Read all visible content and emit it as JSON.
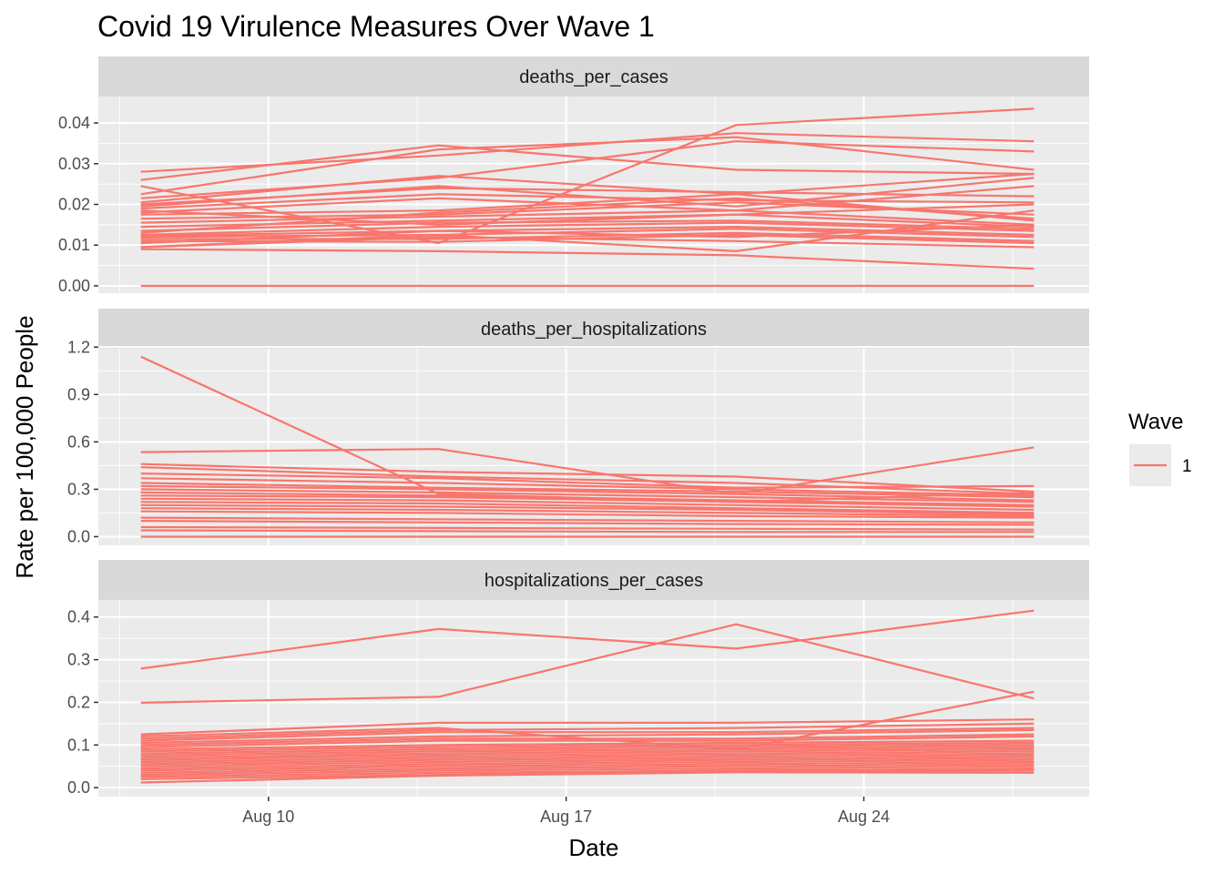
{
  "chart_data": {
    "type": "line",
    "title": "Covid 19 Virulence Measures Over Wave 1",
    "xlabel": "Date",
    "ylabel": "Rate per 100,000 People",
    "x_dates": [
      "Aug 7",
      "Aug 14",
      "Aug 21",
      "Aug 28"
    ],
    "x_day_values": [
      7,
      14,
      21,
      28
    ],
    "x_ticks": [
      {
        "label": "Aug 10",
        "day": 10
      },
      {
        "label": "Aug 17",
        "day": 17
      },
      {
        "label": "Aug 24",
        "day": 24
      }
    ],
    "x_range": [
      6.0,
      29.3
    ],
    "legend": {
      "title": "Wave",
      "entries": [
        {
          "label": "1",
          "color": "#F8766D"
        }
      ]
    },
    "line_color": "#F8766D",
    "panel_bg": "#EBEBEB",
    "strip_bg": "#D9D9D9",
    "grid_color": "#FFFFFF",
    "panels": [
      {
        "name": "deaths_per_cases",
        "ylim": [
          -0.0018,
          0.0465
        ],
        "yticks": [
          0.0,
          0.01,
          0.02,
          0.03,
          0.04
        ],
        "ytick_labels": [
          "0.00",
          "0.01",
          "0.02",
          "0.03",
          "0.04"
        ],
        "series": [
          [
            0.028,
            0.032,
            0.0375,
            0.0355
          ],
          [
            0.026,
            0.0345,
            0.0285,
            0.0275
          ],
          [
            0.0225,
            0.0335,
            0.0365,
            0.0285
          ],
          [
            0.0245,
            0.0105,
            0.0395,
            0.0435
          ],
          [
            0.0215,
            0.0265,
            0.0355,
            0.033
          ],
          [
            0.0205,
            0.027,
            0.0225,
            0.0275
          ],
          [
            0.02,
            0.024,
            0.023,
            0.022
          ],
          [
            0.019,
            0.0225,
            0.021,
            0.0205
          ],
          [
            0.018,
            0.0215,
            0.0185,
            0.0245
          ],
          [
            0.0175,
            0.0185,
            0.0225,
            0.016
          ],
          [
            0.0165,
            0.0175,
            0.0205,
            0.0175
          ],
          [
            0.0155,
            0.017,
            0.0185,
            0.015
          ],
          [
            0.0145,
            0.016,
            0.0175,
            0.0145
          ],
          [
            0.0135,
            0.0155,
            0.016,
            0.014
          ],
          [
            0.0125,
            0.0145,
            0.0155,
            0.0135
          ],
          [
            0.0122,
            0.0135,
            0.0145,
            0.0125
          ],
          [
            0.012,
            0.0125,
            0.014,
            0.012
          ],
          [
            0.0115,
            0.0115,
            0.013,
            0.011
          ],
          [
            0.011,
            0.0108,
            0.0125,
            0.0105
          ],
          [
            0.0105,
            0.0135,
            0.012,
            0.015
          ],
          [
            0.0095,
            0.012,
            0.011,
            0.0095
          ],
          [
            0.009,
            0.0085,
            0.0075,
            0.0042
          ],
          [
            0.0095,
            0.0125,
            0.0085,
            0.0185
          ],
          [
            0.0185,
            0.015,
            0.0175,
            0.02
          ],
          [
            0.0195,
            0.0245,
            0.0195,
            0.0265
          ],
          [
            0.013,
            0.018,
            0.0215,
            0.0165
          ],
          [
            0.0,
            0.0,
            0.0,
            0.0
          ]
        ]
      },
      {
        "name": "deaths_per_hospitalizations",
        "ylim": [
          -0.055,
          1.19
        ],
        "yticks": [
          0.0,
          0.3,
          0.6,
          0.9,
          1.2
        ],
        "ytick_labels": [
          "0.0",
          "0.3",
          "0.6",
          "0.9",
          "1.2"
        ],
        "series": [
          [
            1.14,
            0.27,
            0.22,
            0.28
          ],
          [
            0.535,
            0.555,
            0.27,
            0.565
          ],
          [
            0.46,
            0.41,
            0.38,
            0.285
          ],
          [
            0.44,
            0.38,
            0.34,
            0.27
          ],
          [
            0.4,
            0.37,
            0.31,
            0.32
          ],
          [
            0.37,
            0.34,
            0.3,
            0.26
          ],
          [
            0.34,
            0.31,
            0.285,
            0.25
          ],
          [
            0.32,
            0.3,
            0.27,
            0.23
          ],
          [
            0.3,
            0.28,
            0.25,
            0.22
          ],
          [
            0.28,
            0.26,
            0.23,
            0.2
          ],
          [
            0.26,
            0.25,
            0.22,
            0.19
          ],
          [
            0.24,
            0.23,
            0.2,
            0.17
          ],
          [
            0.22,
            0.21,
            0.18,
            0.15
          ],
          [
            0.2,
            0.19,
            0.17,
            0.14
          ],
          [
            0.18,
            0.17,
            0.15,
            0.13
          ],
          [
            0.16,
            0.15,
            0.13,
            0.12
          ],
          [
            0.12,
            0.11,
            0.1,
            0.09
          ],
          [
            0.1,
            0.09,
            0.08,
            0.075
          ],
          [
            0.06,
            0.055,
            0.05,
            0.045
          ],
          [
            0.04,
            0.035,
            0.03,
            0.03
          ],
          [
            0.0,
            0.0,
            0.0,
            0.0
          ]
        ]
      },
      {
        "name": "hospitalizations_per_cases",
        "ylim": [
          -0.021,
          0.44
        ],
        "yticks": [
          0.0,
          0.1,
          0.2,
          0.3,
          0.4
        ],
        "ytick_labels": [
          "0.0",
          "0.1",
          "0.2",
          "0.3",
          "0.4"
        ],
        "series": [
          [
            0.279,
            0.372,
            0.326,
            0.415
          ],
          [
            0.199,
            0.213,
            0.383,
            0.209
          ],
          [
            0.125,
            0.152,
            0.152,
            0.16
          ],
          [
            0.12,
            0.14,
            0.09,
            0.225
          ],
          [
            0.115,
            0.135,
            0.14,
            0.15
          ],
          [
            0.11,
            0.13,
            0.13,
            0.14
          ],
          [
            0.105,
            0.12,
            0.125,
            0.135
          ],
          [
            0.1,
            0.115,
            0.115,
            0.125
          ],
          [
            0.095,
            0.11,
            0.11,
            0.12
          ],
          [
            0.09,
            0.1,
            0.105,
            0.11
          ],
          [
            0.085,
            0.095,
            0.1,
            0.105
          ],
          [
            0.08,
            0.09,
            0.095,
            0.1
          ],
          [
            0.075,
            0.085,
            0.09,
            0.095
          ],
          [
            0.07,
            0.08,
            0.085,
            0.09
          ],
          [
            0.065,
            0.075,
            0.08,
            0.085
          ],
          [
            0.06,
            0.07,
            0.075,
            0.08
          ],
          [
            0.055,
            0.065,
            0.07,
            0.075
          ],
          [
            0.05,
            0.06,
            0.065,
            0.07
          ],
          [
            0.045,
            0.055,
            0.06,
            0.065
          ],
          [
            0.04,
            0.05,
            0.055,
            0.06
          ],
          [
            0.035,
            0.045,
            0.05,
            0.055
          ],
          [
            0.03,
            0.04,
            0.045,
            0.05
          ],
          [
            0.025,
            0.035,
            0.04,
            0.045
          ],
          [
            0.02,
            0.03,
            0.038,
            0.04
          ],
          [
            0.012,
            0.028,
            0.036,
            0.035
          ]
        ]
      }
    ]
  }
}
